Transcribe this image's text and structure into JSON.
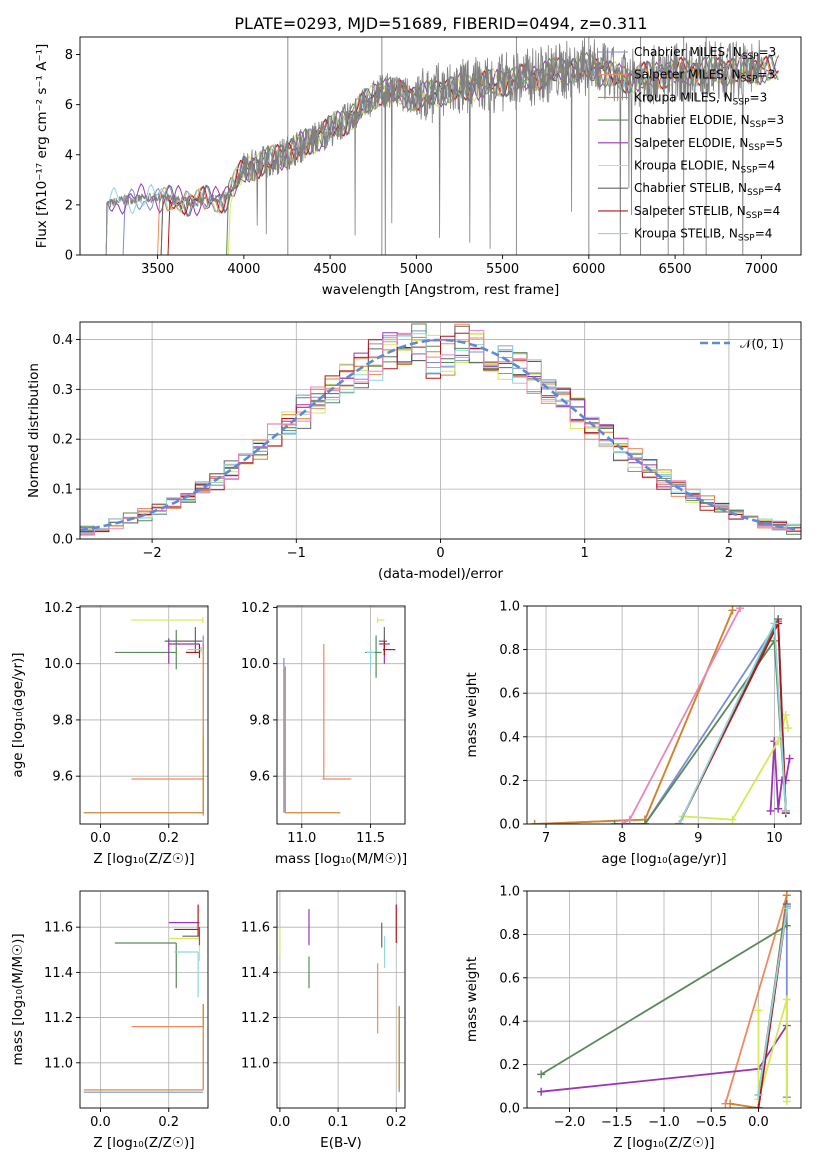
{
  "figure_title": "PLATE=0293, MJD=51689, FIBERID=0494, z=0.311",
  "colors": {
    "Chabrier MILES": "#7b8fd6",
    "Salpeter MILES": "#f08a5d",
    "Kroupa MILES": "#d1842f",
    "Chabrier ELODIE": "#5a8a5a",
    "Salpeter ELODIE": "#9b35b5",
    "Kroupa ELODIE": "#d5e85a",
    "Chabrier STELIB": "#666666",
    "Salpeter STELIB": "#b01818",
    "Kroupa STELIB": "#8fd6dc",
    "data": "#808080",
    "normal": "#5b8ad8",
    "pink": "#e887b8"
  },
  "chart_data": [
    {
      "id": "spectrum",
      "type": "line",
      "title": "PLATE=0293, MJD=51689, FIBERID=0494, z=0.311",
      "xlabel": "wavelength [Angstrom, rest frame]",
      "ylabel": "Flux [fλ10⁻¹⁷ erg cm⁻² s⁻¹ A⁻¹]",
      "xlim": [
        3050,
        7230
      ],
      "ylim": [
        0,
        8.7
      ],
      "xticks": [
        3500,
        4000,
        4500,
        5000,
        5500,
        6000,
        6500,
        7000
      ],
      "yticks": [
        0,
        2,
        4,
        6,
        8
      ],
      "legend_position": "top-right",
      "legend": [
        {
          "name": "Chabrier MILES",
          "sub": "SSP",
          "n": "3"
        },
        {
          "name": "Salpeter MILES",
          "sub": "SSP",
          "n": "3"
        },
        {
          "name": "Kroupa MILES",
          "sub": "SSP",
          "n": "3"
        },
        {
          "name": "Chabrier ELODIE",
          "sub": "SSP",
          "n": "3"
        },
        {
          "name": "Salpeter ELODIE",
          "sub": "SSP",
          "n": "5"
        },
        {
          "name": "Kroupa ELODIE",
          "sub": "SSP",
          "n": "4"
        },
        {
          "name": "Chabrier STELIB",
          "sub": "SSP",
          "n": "4"
        },
        {
          "name": "Salpeter STELIB",
          "sub": "SSP",
          "n": "4"
        },
        {
          "name": "Kroupa STELIB",
          "sub": "SSP",
          "n": "4"
        }
      ],
      "continuum": {
        "x": [
          3200,
          3300,
          3500,
          3700,
          3900,
          4000,
          4200,
          4400,
          4600,
          4800,
          5000,
          5200,
          5400,
          5600,
          5800,
          6000,
          6200,
          6500,
          7000
        ],
        "y": [
          2.0,
          2.2,
          2.3,
          2.1,
          2.3,
          3.4,
          3.9,
          4.6,
          5.4,
          6.6,
          6.3,
          6.6,
          6.8,
          7.0,
          7.3,
          7.5,
          7.0,
          7.3,
          7.4
        ]
      }
    },
    {
      "id": "residuals",
      "type": "histogram",
      "xlabel": "(data-model)/error",
      "ylabel": "Normed distribution",
      "xlim": [
        -2.5,
        2.5
      ],
      "ylim": [
        0,
        0.435
      ],
      "xticks": [
        -2,
        -1,
        0,
        1,
        2
      ],
      "yticks": [
        0.0,
        0.1,
        0.2,
        0.3,
        0.4
      ],
      "legend_position": "top-right",
      "normal_label": "𝒩(0, 1)"
    },
    {
      "id": "age-vs-Z",
      "type": "scatter",
      "xlabel": "Z [log₁₀(Z/Z☉)]",
      "ylabel": "age  [log₁₀(age/yr)]",
      "xlim": [
        -0.06,
        0.315
      ],
      "ylim": [
        9.43,
        10.205
      ],
      "xticks": [
        0.0,
        0.2
      ],
      "yticks": [
        9.6,
        9.8,
        10.0,
        10.2
      ],
      "points": [
        {
          "model": "Chabrier MILES",
          "x": 0.301,
          "y": 10.08,
          "xerr": [
            0.0,
            0.0
          ],
          "yerr": [
            0.03,
            0.02
          ]
        },
        {
          "model": "Salpeter MILES",
          "x": 0.301,
          "y": 9.59,
          "xerr": [
            0.21,
            0.0
          ],
          "yerr": [
            0.12,
            0.15
          ]
        },
        {
          "model": "Kroupa MILES",
          "x": 0.301,
          "y": 9.47,
          "xerr": [
            0.35,
            0.0
          ],
          "yerr": [
            0.01,
            0.6
          ]
        },
        {
          "model": "Chabrier ELODIE",
          "x": 0.222,
          "y": 10.04,
          "xerr": [
            0.18,
            0.0
          ],
          "yerr": [
            0.06,
            0.08
          ]
        },
        {
          "model": "Salpeter ELODIE",
          "x": 0.2,
          "y": 10.07,
          "xerr": [
            0.0,
            0.09
          ],
          "yerr": [
            0.07,
            0.02
          ]
        },
        {
          "model": "Kroupa ELODIE",
          "x": 0.3,
          "y": 10.155,
          "xerr": [
            0.21,
            0.0
          ],
          "yerr": [
            0.01,
            0.01
          ]
        },
        {
          "model": "Chabrier STELIB",
          "x": 0.278,
          "y": 10.08,
          "xerr": [
            0.09,
            0.02
          ],
          "yerr": [
            0.04,
            0.05
          ]
        },
        {
          "model": "Salpeter STELIB",
          "x": 0.29,
          "y": 10.04,
          "xerr": [
            0.04,
            0.0
          ],
          "yerr": [
            0.02,
            0.03
          ]
        },
        {
          "model": "Kroupa STELIB",
          "x": 0.295,
          "y": 10.05,
          "xerr": [
            0.04,
            0.0
          ],
          "yerr": [
            0.01,
            0.01
          ]
        }
      ]
    },
    {
      "id": "age-vs-mass",
      "type": "scatter",
      "xlabel": "mass [log₁₀(M/M☉)]",
      "ylabel": "",
      "xlim": [
        10.82,
        11.75
      ],
      "ylim": [
        9.43,
        10.205
      ],
      "xticks": [
        11.0,
        11.5
      ],
      "yticks": [
        9.6,
        9.8,
        10.0,
        10.2
      ],
      "points": [
        {
          "model": "Chabrier MILES",
          "x": 10.87,
          "y": 9.47,
          "xerr": [
            0.0,
            0.0
          ],
          "yerr": [
            0.0,
            0.55
          ]
        },
        {
          "model": "Salpeter MILES",
          "x": 11.16,
          "y": 9.59,
          "xerr": [
            0.01,
            0.2
          ],
          "yerr": [
            0.0,
            0.48
          ]
        },
        {
          "model": "Kroupa MILES",
          "x": 10.88,
          "y": 9.47,
          "xerr": [
            0.0,
            0.4
          ],
          "yerr": [
            0.0,
            0.52
          ]
        },
        {
          "model": "Chabrier ELODIE",
          "x": 11.54,
          "y": 10.04,
          "xerr": [
            0.08,
            0.04
          ],
          "yerr": [
            0.09,
            0.06
          ]
        },
        {
          "model": "Salpeter ELODIE",
          "x": 11.6,
          "y": 10.07,
          "xerr": [
            0.04,
            0.04
          ],
          "yerr": [
            0.07,
            0.02
          ]
        },
        {
          "model": "Kroupa ELODIE",
          "x": 11.55,
          "y": 10.155,
          "xerr": [
            0.0,
            0.05
          ],
          "yerr": [
            0.01,
            0.01
          ]
        },
        {
          "model": "Chabrier STELIB",
          "x": 11.6,
          "y": 10.08,
          "xerr": [
            0.04,
            0.02
          ],
          "yerr": [
            0.04,
            0.05
          ]
        },
        {
          "model": "Salpeter STELIB",
          "x": 11.6,
          "y": 10.05,
          "xerr": [
            0.01,
            0.08
          ],
          "yerr": [
            0.02,
            0.03
          ]
        },
        {
          "model": "Kroupa STELIB",
          "x": 11.5,
          "y": 10.04,
          "xerr": [
            0.03,
            0.03
          ],
          "yerr": [
            0.06,
            0.01
          ]
        }
      ]
    },
    {
      "id": "weight-vs-age",
      "type": "line",
      "xlabel": "age  [log₁₀(age/yr)]",
      "ylabel": "mass weight",
      "xlim": [
        6.75,
        10.35
      ],
      "ylim": [
        0,
        1.0
      ],
      "xticks": [
        7,
        8,
        9,
        10
      ],
      "yticks": [
        0.0,
        0.2,
        0.4,
        0.6,
        0.8,
        1.0
      ],
      "series": [
        {
          "model": "Chabrier MILES",
          "x": [
            8.3,
            10.05,
            10.15
          ],
          "y": [
            0.0,
            0.93,
            0.05
          ]
        },
        {
          "model": "Salpeter MILES",
          "x": [
            6.85,
            8.3,
            9.45
          ],
          "y": [
            0.0,
            0.02,
            0.98
          ]
        },
        {
          "model": "Kroupa MILES",
          "x": [
            6.85,
            8.3,
            9.45
          ],
          "y": [
            0.0,
            0.02,
            0.98
          ]
        },
        {
          "model": "Chabrier ELODIE",
          "x": [
            7.9,
            8.3,
            10.0,
            10.15
          ],
          "y": [
            0.0,
            0.0,
            0.84,
            0.06
          ]
        },
        {
          "model": "Salpeter ELODIE",
          "x": [
            9.95,
            10.0,
            10.05,
            10.1,
            10.15,
            10.2
          ],
          "y": [
            0.06,
            0.38,
            0.07,
            0.2,
            0.2,
            0.3
          ]
        },
        {
          "model": "Kroupa ELODIE",
          "x": [
            8.8,
            9.45,
            10.05,
            10.15,
            10.18
          ],
          "y": [
            0.035,
            0.02,
            0.38,
            0.5,
            0.44
          ]
        },
        {
          "model": "Chabrier STELIB",
          "x": [
            8.75,
            10.05,
            10.15
          ],
          "y": [
            0.0,
            0.94,
            0.06
          ]
        },
        {
          "model": "Salpeter STELIB",
          "x": [
            8.75,
            10.05,
            10.15
          ],
          "y": [
            0.0,
            0.92,
            0.05
          ]
        },
        {
          "model": "Kroupa STELIB",
          "x": [
            8.75,
            10.0,
            10.15
          ],
          "y": [
            0.0,
            0.92,
            0.06
          ]
        },
        {
          "model": "pink",
          "x": [
            8.0,
            8.1,
            9.55
          ],
          "y": [
            0.0,
            0.02,
            0.99
          ]
        }
      ]
    },
    {
      "id": "mass-vs-Z",
      "type": "scatter",
      "xlabel": "Z [log₁₀(Z/Z☉)]",
      "ylabel": "mass [log₁₀(M/M☉)]",
      "xlim": [
        -0.06,
        0.315
      ],
      "ylim": [
        10.8,
        11.76
      ],
      "xticks": [
        0.0,
        0.2
      ],
      "yticks": [
        11.0,
        11.2,
        11.4,
        11.6
      ],
      "points": [
        {
          "model": "Chabrier MILES",
          "x": 0.301,
          "y": 10.87,
          "xerr": [
            0.35,
            0.0
          ],
          "yerr": [
            0.0,
            0.0
          ]
        },
        {
          "model": "Salpeter MILES",
          "x": 0.301,
          "y": 11.16,
          "xerr": [
            0.21,
            0.0
          ],
          "yerr": [
            0.0,
            0.1
          ]
        },
        {
          "model": "Kroupa MILES",
          "x": 0.301,
          "y": 10.88,
          "xerr": [
            0.35,
            0.0
          ],
          "yerr": [
            0.0,
            0.38
          ]
        },
        {
          "model": "Chabrier ELODIE",
          "x": 0.222,
          "y": 11.53,
          "xerr": [
            0.18,
            0.0
          ],
          "yerr": [
            0.2,
            0.0
          ]
        },
        {
          "model": "Salpeter ELODIE",
          "x": 0.2,
          "y": 11.62,
          "xerr": [
            0.0,
            0.09
          ],
          "yerr": [
            0.0,
            0.0
          ]
        },
        {
          "model": "Kroupa ELODIE",
          "x": 0.29,
          "y": 11.55,
          "xerr": [
            0.09,
            0.0
          ],
          "yerr": [
            0.1,
            0.0
          ]
        },
        {
          "model": "Chabrier STELIB",
          "x": 0.29,
          "y": 11.56,
          "xerr": [
            0.05,
            0.0
          ],
          "yerr": [
            0.04,
            0.04
          ]
        },
        {
          "model": "Salpeter STELIB",
          "x": 0.286,
          "y": 11.59,
          "xerr": [
            0.07,
            0.0
          ],
          "yerr": [
            0.03,
            0.11
          ]
        },
        {
          "model": "Kroupa STELIB",
          "x": 0.286,
          "y": 11.49,
          "xerr": [
            0.07,
            0.0
          ],
          "yerr": [
            0.2,
            0.0
          ]
        }
      ]
    },
    {
      "id": "mass-vs-ebv",
      "type": "scatter",
      "xlabel": "E(B-V)",
      "ylabel": "",
      "xlim": [
        -0.005,
        0.215
      ],
      "ylim": [
        10.8,
        11.76
      ],
      "xticks": [
        0.0,
        0.1,
        0.2
      ],
      "yticks": [
        11.0,
        11.2,
        11.4,
        11.6
      ],
      "points": [
        {
          "model": "Chabrier MILES",
          "x": 0.205,
          "y": 11.1,
          "xerr": [
            0.0,
            0.0
          ],
          "yerr": [
            0.23,
            0.15
          ]
        },
        {
          "model": "Salpeter MILES",
          "x": 0.168,
          "y": 11.3,
          "xerr": [
            0.0,
            0.0
          ],
          "yerr": [
            0.17,
            0.14
          ]
        },
        {
          "model": "Kroupa MILES",
          "x": 0.205,
          "y": 11.1,
          "xerr": [
            0.0,
            0.0
          ],
          "yerr": [
            0.22,
            0.15
          ]
        },
        {
          "model": "Chabrier ELODIE",
          "x": 0.05,
          "y": 11.4,
          "xerr": [
            0.0,
            0.0
          ],
          "yerr": [
            0.07,
            0.07
          ]
        },
        {
          "model": "Salpeter ELODIE",
          "x": 0.05,
          "y": 11.58,
          "xerr": [
            0.0,
            0.0
          ],
          "yerr": [
            0.06,
            0.1
          ]
        },
        {
          "model": "Kroupa ELODIE",
          "x": 0.0,
          "y": 11.55,
          "xerr": [
            0.0,
            0.0
          ],
          "yerr": [
            0.07,
            0.05
          ]
        },
        {
          "model": "Chabrier STELIB",
          "x": 0.175,
          "y": 11.55,
          "xerr": [
            0.0,
            0.0
          ],
          "yerr": [
            0.04,
            0.07
          ]
        },
        {
          "model": "Salpeter STELIB",
          "x": 0.2,
          "y": 11.6,
          "xerr": [
            0.0,
            0.0
          ],
          "yerr": [
            0.07,
            0.1
          ]
        },
        {
          "model": "Kroupa STELIB",
          "x": 0.18,
          "y": 11.48,
          "xerr": [
            0.0,
            0.0
          ],
          "yerr": [
            0.06,
            0.08
          ]
        }
      ]
    },
    {
      "id": "weight-vs-Z",
      "type": "line",
      "xlabel": "Z [log₁₀(Z/Z☉)]",
      "ylabel": "mass weight",
      "xlim": [
        -2.45,
        0.45
      ],
      "ylim": [
        0,
        1.0
      ],
      "xticks": [
        -2.0,
        -1.5,
        -1.0,
        -0.5,
        0.0
      ],
      "yticks": [
        0.0,
        0.2,
        0.4,
        0.6,
        0.8,
        1.0
      ],
      "series": [
        {
          "model": "Chabrier MILES",
          "x": [
            0.3,
            0.3
          ],
          "y": [
            0.05,
            0.93
          ]
        },
        {
          "model": "Salpeter MILES",
          "x": [
            -0.35,
            0.3
          ],
          "y": [
            0.02,
            0.98
          ]
        },
        {
          "model": "Kroupa MILES",
          "x": [
            -0.3,
            0.0,
            0.3
          ],
          "y": [
            0.02,
            0.0,
            0.98
          ]
        },
        {
          "model": "Chabrier ELODIE",
          "x": [
            -2.3,
            0.3
          ],
          "y": [
            0.155,
            0.84
          ]
        },
        {
          "model": "Salpeter ELODIE",
          "x": [
            -2.3,
            0.0,
            0.3
          ],
          "y": [
            0.075,
            0.18,
            0.38
          ]
        },
        {
          "model": "Kroupa ELODIE",
          "x": [
            0.0,
            0.0,
            0.3,
            0.3
          ],
          "y": [
            0.45,
            0.04,
            0.5,
            0.03
          ]
        },
        {
          "model": "Chabrier STELIB",
          "x": [
            0.0,
            0.3
          ],
          "y": [
            0.06,
            0.94
          ]
        },
        {
          "model": "Salpeter STELIB",
          "x": [
            0.0,
            0.3
          ],
          "y": [
            0.0,
            0.92
          ]
        },
        {
          "model": "Kroupa STELIB",
          "x": [
            0.0,
            0.3
          ],
          "y": [
            0.06,
            0.92
          ]
        }
      ]
    }
  ]
}
